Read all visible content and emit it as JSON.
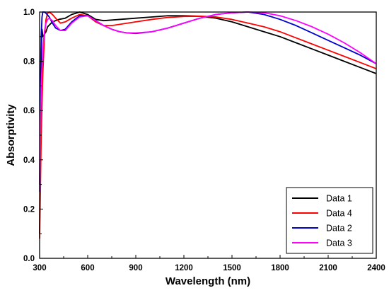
{
  "chart_data": {
    "type": "line",
    "xlabel": "Wavelength (nm)",
    "ylabel": "Absorptivity",
    "xlim": [
      300,
      2400
    ],
    "ylim": [
      0.0,
      1.0
    ],
    "x_ticks": [
      "300",
      "600",
      "900",
      "1200",
      "1500",
      "1800",
      "2100",
      "2400"
    ],
    "y_ticks": [
      "0.0",
      "0.2",
      "0.4",
      "0.6",
      "0.8",
      "1.0"
    ],
    "grid": false,
    "legend_position": "bottom-right",
    "series": [
      {
        "name": "Data 1",
        "color": "#000000",
        "points": [
          [
            300,
            0.1
          ],
          [
            305,
            0.55
          ],
          [
            310,
            0.85
          ],
          [
            315,
            0.93
          ],
          [
            320,
            0.9
          ],
          [
            330,
            0.91
          ],
          [
            340,
            0.92
          ],
          [
            350,
            0.94
          ],
          [
            380,
            0.96
          ],
          [
            420,
            0.97
          ],
          [
            460,
            0.975
          ],
          [
            500,
            0.99
          ],
          [
            550,
            1.0
          ],
          [
            600,
            0.99
          ],
          [
            650,
            0.97
          ],
          [
            700,
            0.965
          ],
          [
            800,
            0.97
          ],
          [
            900,
            0.975
          ],
          [
            1000,
            0.98
          ],
          [
            1100,
            0.985
          ],
          [
            1200,
            0.985
          ],
          [
            1300,
            0.983
          ],
          [
            1400,
            0.975
          ],
          [
            1500,
            0.96
          ],
          [
            1600,
            0.94
          ],
          [
            1700,
            0.92
          ],
          [
            1800,
            0.9
          ],
          [
            1900,
            0.875
          ],
          [
            2000,
            0.85
          ],
          [
            2100,
            0.825
          ],
          [
            2200,
            0.8
          ],
          [
            2300,
            0.775
          ],
          [
            2400,
            0.75
          ]
        ]
      },
      {
        "name": "Data 4",
        "color": "#ff0000",
        "points": [
          [
            300,
            0.08
          ],
          [
            303,
            0.2
          ],
          [
            310,
            0.5
          ],
          [
            320,
            0.75
          ],
          [
            330,
            0.9
          ],
          [
            340,
            0.97
          ],
          [
            350,
            0.995
          ],
          [
            360,
            1.0
          ],
          [
            380,
            0.99
          ],
          [
            400,
            0.975
          ],
          [
            430,
            0.955
          ],
          [
            460,
            0.96
          ],
          [
            500,
            0.975
          ],
          [
            550,
            0.99
          ],
          [
            600,
            0.985
          ],
          [
            650,
            0.96
          ],
          [
            700,
            0.945
          ],
          [
            750,
            0.945
          ],
          [
            800,
            0.95
          ],
          [
            900,
            0.96
          ],
          [
            1000,
            0.97
          ],
          [
            1100,
            0.978
          ],
          [
            1200,
            0.982
          ],
          [
            1300,
            0.983
          ],
          [
            1400,
            0.98
          ],
          [
            1500,
            0.97
          ],
          [
            1600,
            0.955
          ],
          [
            1700,
            0.94
          ],
          [
            1800,
            0.92
          ],
          [
            1900,
            0.895
          ],
          [
            2000,
            0.87
          ],
          [
            2100,
            0.845
          ],
          [
            2200,
            0.82
          ],
          [
            2300,
            0.795
          ],
          [
            2400,
            0.77
          ]
        ]
      },
      {
        "name": "Data 2",
        "color": "#0000cc",
        "points": [
          [
            300,
            0.3
          ],
          [
            305,
            0.7
          ],
          [
            310,
            0.9
          ],
          [
            315,
            0.98
          ],
          [
            320,
            1.0
          ],
          [
            330,
            1.0
          ],
          [
            340,
            0.995
          ],
          [
            360,
            0.98
          ],
          [
            380,
            0.955
          ],
          [
            400,
            0.935
          ],
          [
            430,
            0.925
          ],
          [
            460,
            0.93
          ],
          [
            500,
            0.96
          ],
          [
            550,
            0.985
          ],
          [
            600,
            0.985
          ],
          [
            650,
            0.965
          ],
          [
            700,
            0.945
          ],
          [
            750,
            0.93
          ],
          [
            800,
            0.92
          ],
          [
            850,
            0.915
          ],
          [
            900,
            0.913
          ],
          [
            1000,
            0.92
          ],
          [
            1100,
            0.935
          ],
          [
            1200,
            0.955
          ],
          [
            1300,
            0.975
          ],
          [
            1400,
            0.99
          ],
          [
            1500,
            0.997
          ],
          [
            1600,
            1.0
          ],
          [
            1700,
            0.99
          ],
          [
            1800,
            0.97
          ],
          [
            1900,
            0.945
          ],
          [
            2000,
            0.915
          ],
          [
            2100,
            0.885
          ],
          [
            2200,
            0.855
          ],
          [
            2300,
            0.825
          ],
          [
            2400,
            0.79
          ]
        ]
      },
      {
        "name": "Data 3",
        "color": "#ff00ff",
        "points": [
          [
            300,
            0.27
          ],
          [
            305,
            0.5
          ],
          [
            310,
            0.7
          ],
          [
            320,
            0.85
          ],
          [
            330,
            0.92
          ],
          [
            340,
            0.955
          ],
          [
            350,
            0.97
          ],
          [
            360,
            0.975
          ],
          [
            380,
            0.965
          ],
          [
            400,
            0.945
          ],
          [
            430,
            0.925
          ],
          [
            460,
            0.925
          ],
          [
            500,
            0.955
          ],
          [
            550,
            0.98
          ],
          [
            600,
            0.985
          ],
          [
            650,
            0.965
          ],
          [
            700,
            0.945
          ],
          [
            750,
            0.93
          ],
          [
            800,
            0.92
          ],
          [
            850,
            0.915
          ],
          [
            900,
            0.915
          ],
          [
            1000,
            0.92
          ],
          [
            1100,
            0.935
          ],
          [
            1200,
            0.955
          ],
          [
            1300,
            0.975
          ],
          [
            1400,
            0.99
          ],
          [
            1500,
            0.997
          ],
          [
            1600,
            1.0
          ],
          [
            1700,
            0.997
          ],
          [
            1800,
            0.985
          ],
          [
            1900,
            0.965
          ],
          [
            2000,
            0.94
          ],
          [
            2100,
            0.91
          ],
          [
            2200,
            0.875
          ],
          [
            2300,
            0.835
          ],
          [
            2400,
            0.79
          ]
        ]
      }
    ]
  }
}
